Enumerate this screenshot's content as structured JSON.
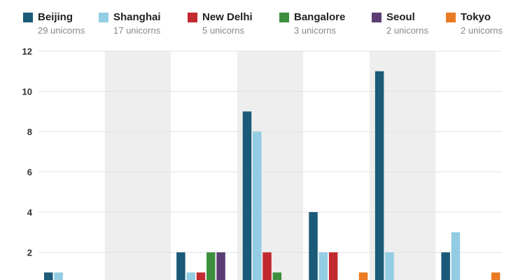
{
  "chart_data": {
    "type": "bar",
    "categories": [
      "",
      "",
      "",
      "",
      "",
      "",
      ""
    ],
    "series": [
      {
        "name": "Beijing",
        "subtitle": "29 unicorns",
        "color": "#1b5a78",
        "values": [
          1,
          0,
          2,
          9,
          4,
          11,
          2
        ]
      },
      {
        "name": "Shanghai",
        "subtitle": "17 unicorns",
        "color": "#92cde3",
        "values": [
          1,
          0,
          1,
          8,
          2,
          2,
          3
        ]
      },
      {
        "name": "New Delhi",
        "subtitle": "5 unicorns",
        "color": "#c12a2f",
        "values": [
          0,
          0,
          1,
          2,
          2,
          0,
          0
        ]
      },
      {
        "name": "Bangalore",
        "subtitle": "3 unicorns",
        "color": "#3d8f3d",
        "values": [
          0,
          0,
          2,
          1,
          0,
          0,
          0
        ]
      },
      {
        "name": "Seoul",
        "subtitle": "2 unicorns",
        "color": "#5b3d73",
        "values": [
          0,
          0,
          2,
          0,
          0,
          0,
          0
        ]
      },
      {
        "name": "Tokyo",
        "subtitle": "2 unicorns",
        "color": "#ea7b22",
        "values": [
          0,
          0,
          0,
          0,
          1,
          0,
          1
        ]
      }
    ],
    "yticks": [
      "2",
      "4",
      "6",
      "8",
      "10",
      "12"
    ],
    "ylim": [
      0,
      12
    ],
    "grid": true,
    "legend_position": "top",
    "band_color": "#eeeeee"
  }
}
